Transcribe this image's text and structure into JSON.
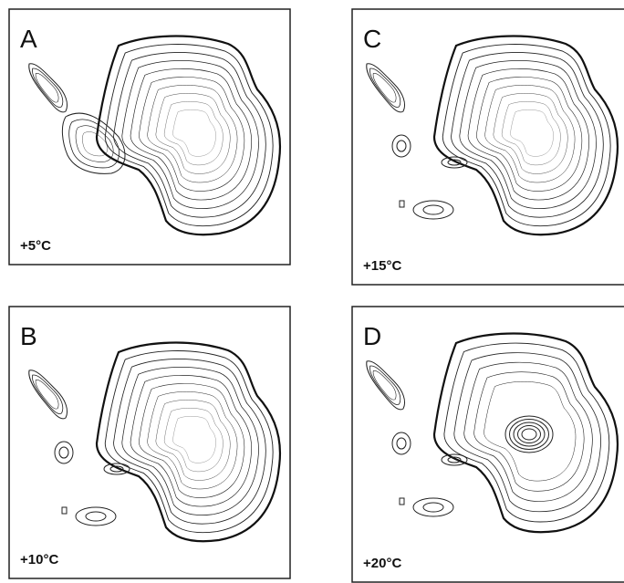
{
  "panels": [
    {
      "letter": "A",
      "temperature": "+5°C"
    },
    {
      "letter": "B",
      "temperature": "+10°C"
    },
    {
      "letter": "C",
      "temperature": "+15°C"
    },
    {
      "letter": "D",
      "temperature": "+20°C"
    }
  ]
}
